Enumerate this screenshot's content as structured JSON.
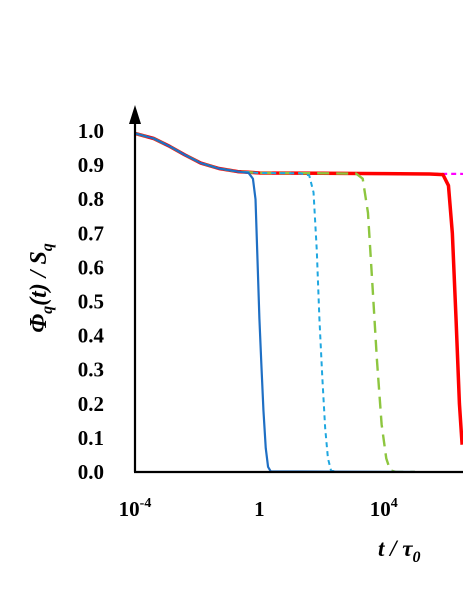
{
  "chart_data": {
    "type": "line",
    "xlabel": {
      "main": "t / τ",
      "sub": "0"
    },
    "ylabel": {
      "parts": [
        "Φ",
        "q",
        "(t) / S",
        "q"
      ]
    },
    "x_scale": "log10",
    "xlim": [
      0.0001,
      10000000
    ],
    "ylim": [
      0,
      1.0
    ],
    "x_ticks": [
      {
        "value": 0.0001,
        "base": "10",
        "exp": "-4"
      },
      {
        "value": 1,
        "base": "1",
        "exp": ""
      },
      {
        "value": 10000,
        "base": "10",
        "exp": "4"
      }
    ],
    "y_ticks": [
      "0.0",
      "0.1",
      "0.2",
      "0.3",
      "0.4",
      "0.5",
      "0.6",
      "0.7",
      "0.8",
      "0.9",
      "1.0"
    ],
    "grid": false,
    "legend": "none",
    "series": [
      {
        "color": "#1f6fc4",
        "style": "solid",
        "width": 2.2,
        "points": [
          [
            0.0001,
            0.993
          ],
          [
            0.0004,
            0.978
          ],
          [
            0.0013,
            0.955
          ],
          [
            0.004,
            0.93
          ],
          [
            0.013,
            0.906
          ],
          [
            0.05,
            0.89
          ],
          [
            0.2,
            0.881
          ],
          [
            0.45,
            0.877
          ],
          [
            0.62,
            0.86
          ],
          [
            0.75,
            0.8
          ],
          [
            0.87,
            0.62
          ],
          [
            1.0,
            0.45
          ],
          [
            1.15,
            0.32
          ],
          [
            1.35,
            0.18
          ],
          [
            1.6,
            0.07
          ],
          [
            1.9,
            0.015
          ],
          [
            2.3,
            0.002
          ],
          [
            100000,
            0.0
          ]
        ]
      },
      {
        "color": "#1fa7e0",
        "style": "dash",
        "width": 2.0,
        "points": [
          [
            0.0001,
            0.993
          ],
          [
            0.0004,
            0.978
          ],
          [
            0.0013,
            0.955
          ],
          [
            0.004,
            0.93
          ],
          [
            0.013,
            0.906
          ],
          [
            0.05,
            0.89
          ],
          [
            0.2,
            0.881
          ],
          [
            1,
            0.877
          ],
          [
            20,
            0.876
          ],
          [
            40,
            0.87
          ],
          [
            55,
            0.82
          ],
          [
            70,
            0.65
          ],
          [
            85,
            0.45
          ],
          [
            105,
            0.28
          ],
          [
            130,
            0.13
          ],
          [
            160,
            0.04
          ],
          [
            200,
            0.005
          ],
          [
            300,
            0.0
          ],
          [
            100000,
            0.0
          ]
        ]
      },
      {
        "color": "#8dc63f",
        "style": "longdash",
        "width": 2.4,
        "points": [
          [
            0.0001,
            0.993
          ],
          [
            0.0004,
            0.978
          ],
          [
            0.0013,
            0.955
          ],
          [
            0.004,
            0.93
          ],
          [
            0.013,
            0.906
          ],
          [
            0.05,
            0.89
          ],
          [
            0.2,
            0.881
          ],
          [
            1,
            0.877
          ],
          [
            100,
            0.876
          ],
          [
            1300,
            0.875
          ],
          [
            2100,
            0.86
          ],
          [
            3100,
            0.76
          ],
          [
            4300,
            0.55
          ],
          [
            6000,
            0.33
          ],
          [
            8500,
            0.14
          ],
          [
            12000,
            0.04
          ],
          [
            16000,
            0.005
          ],
          [
            25000,
            0.0
          ],
          [
            100000,
            0.0
          ]
        ]
      },
      {
        "color": "#ff0000",
        "style": "solid",
        "width": 3.5,
        "points": [
          [
            0.0001,
            0.993
          ],
          [
            0.0004,
            0.978
          ],
          [
            0.0013,
            0.955
          ],
          [
            0.004,
            0.93
          ],
          [
            0.013,
            0.906
          ],
          [
            0.05,
            0.89
          ],
          [
            0.2,
            0.881
          ],
          [
            1,
            0.877
          ],
          [
            100,
            0.876
          ],
          [
            10000,
            0.875
          ],
          [
            300000,
            0.874
          ],
          [
            800000,
            0.872
          ],
          [
            1200000,
            0.84
          ],
          [
            1600000,
            0.7
          ],
          [
            2100000,
            0.45
          ],
          [
            2700000,
            0.2
          ],
          [
            3300000,
            0.08
          ]
        ]
      },
      {
        "color": "#ff00ff",
        "style": "dash",
        "width": 2.2,
        "points": [
          [
            0.0001,
            0.993
          ],
          [
            0.0004,
            0.978
          ],
          [
            0.0013,
            0.955
          ],
          [
            0.004,
            0.93
          ],
          [
            0.013,
            0.906
          ],
          [
            0.05,
            0.89
          ],
          [
            0.2,
            0.881
          ],
          [
            1,
            0.877
          ],
          [
            100,
            0.876
          ],
          [
            10000,
            0.875
          ],
          [
            10000000,
            0.874
          ]
        ]
      }
    ]
  }
}
